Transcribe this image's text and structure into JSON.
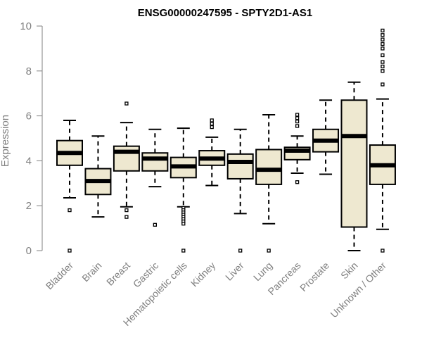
{
  "chart_data": {
    "type": "boxplot",
    "title": "ENSG00000247595 - SPTY2D1-AS1",
    "ylabel": "Expression",
    "xlabel": "",
    "ylim": [
      0,
      10
    ],
    "yticks": [
      0,
      2,
      4,
      6,
      8,
      10
    ],
    "grid": false,
    "box_fill": "#EEE8D0",
    "categories": [
      "Bladder",
      "Brain",
      "Breast",
      "Gastric",
      "Hematopoietic cells",
      "Kidney",
      "Liver",
      "Lung",
      "Pancreas",
      "Prostate",
      "Skin",
      "Unknown / Other"
    ],
    "series": [
      {
        "q1": 3.8,
        "median": 4.35,
        "q3": 4.9,
        "whisker_low": 2.35,
        "whisker_high": 5.8,
        "outliers": [
          1.8,
          0.0
        ]
      },
      {
        "q1": 2.5,
        "median": 3.1,
        "q3": 3.65,
        "whisker_low": 1.5,
        "whisker_high": 5.1,
        "outliers": []
      },
      {
        "q1": 3.55,
        "median": 4.4,
        "q3": 4.65,
        "whisker_low": 1.95,
        "whisker_high": 5.7,
        "outliers": [
          6.55,
          1.8,
          1.5
        ]
      },
      {
        "q1": 3.55,
        "median": 4.1,
        "q3": 4.35,
        "whisker_low": 2.85,
        "whisker_high": 5.4,
        "outliers": [
          1.15
        ]
      },
      {
        "q1": 3.25,
        "median": 3.75,
        "q3": 4.15,
        "whisker_low": 1.95,
        "whisker_high": 5.45,
        "outliers": [
          1.9,
          1.8,
          1.7,
          1.6,
          1.5,
          1.4,
          1.3,
          1.2,
          0.0
        ]
      },
      {
        "q1": 3.8,
        "median": 4.1,
        "q3": 4.45,
        "whisker_low": 2.9,
        "whisker_high": 5.05,
        "outliers": [
          5.5,
          5.65,
          5.8
        ]
      },
      {
        "q1": 3.2,
        "median": 3.95,
        "q3": 4.3,
        "whisker_low": 1.65,
        "whisker_high": 5.4,
        "outliers": [
          0.0
        ]
      },
      {
        "q1": 2.95,
        "median": 3.6,
        "q3": 4.5,
        "whisker_low": 1.2,
        "whisker_high": 6.05,
        "outliers": [
          0.0
        ]
      },
      {
        "q1": 4.05,
        "median": 4.45,
        "q3": 4.6,
        "whisker_low": 3.45,
        "whisker_high": 5.1,
        "outliers": [
          5.55,
          5.75,
          5.9,
          6.05,
          3.05
        ]
      },
      {
        "q1": 4.4,
        "median": 4.9,
        "q3": 5.4,
        "whisker_low": 3.4,
        "whisker_high": 6.7,
        "outliers": []
      },
      {
        "q1": 1.05,
        "median": 5.1,
        "q3": 6.7,
        "whisker_low": 0.0,
        "whisker_high": 7.5,
        "outliers": []
      },
      {
        "q1": 2.95,
        "median": 3.8,
        "q3": 4.7,
        "whisker_low": 0.95,
        "whisker_high": 6.75,
        "outliers": [
          0.0,
          7.4,
          8.0,
          8.2,
          8.4,
          8.7,
          9.0,
          9.2,
          9.4,
          9.6,
          9.8
        ]
      }
    ]
  }
}
